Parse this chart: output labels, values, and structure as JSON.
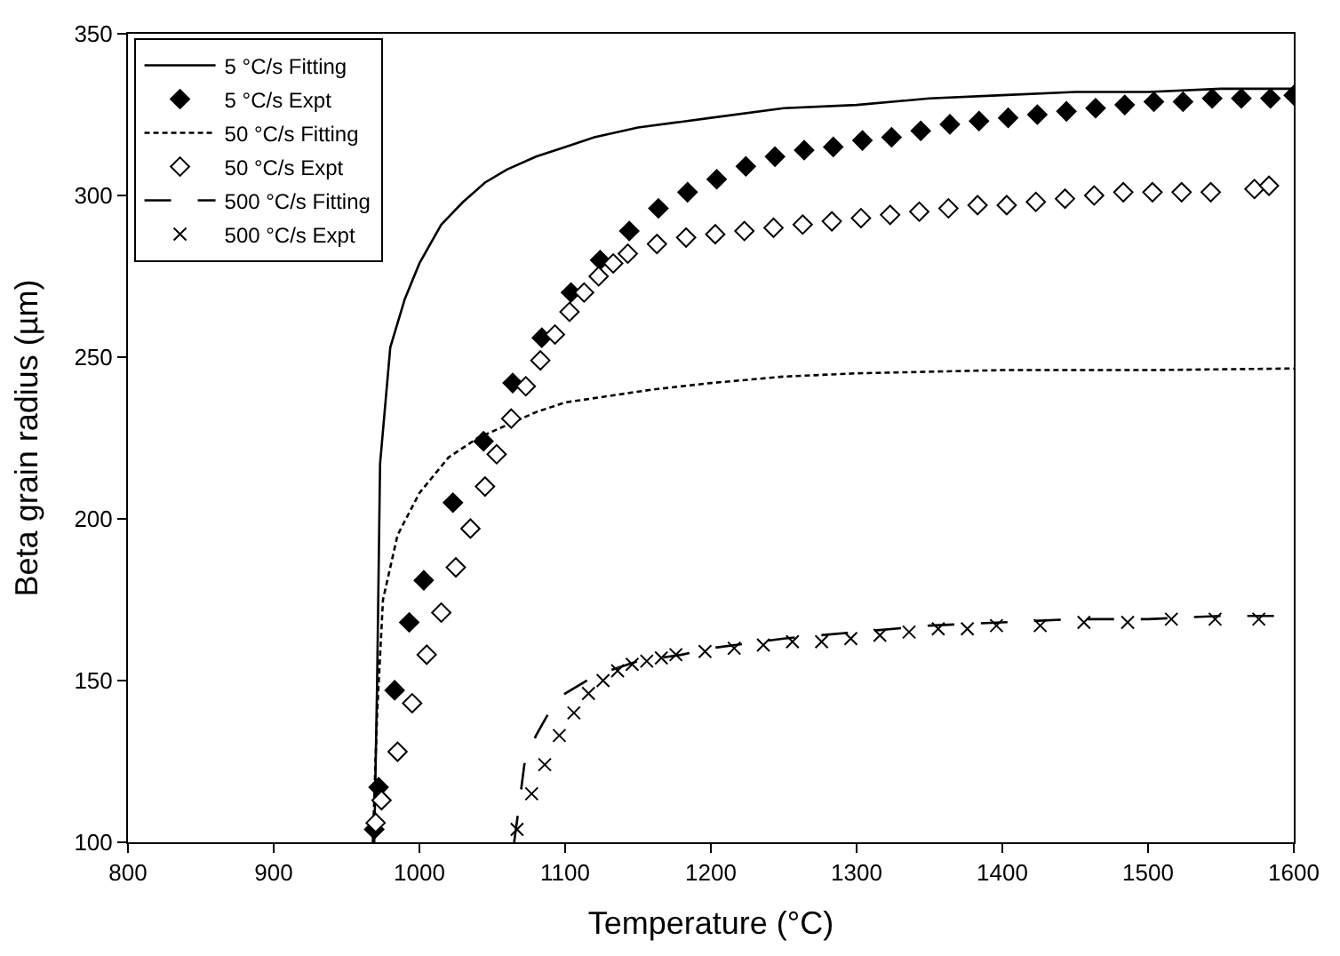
{
  "chart_data": {
    "type": "line",
    "xlabel": "Temperature (°C)",
    "ylabel": "Beta grain radius (µm)",
    "xlim": [
      800,
      1600
    ],
    "ylim": [
      100,
      350
    ],
    "xticks": [
      800,
      900,
      1000,
      1100,
      1200,
      1300,
      1400,
      1500,
      1600
    ],
    "yticks": [
      100,
      150,
      200,
      250,
      300,
      350
    ],
    "legend": "top left",
    "series": [
      {
        "name": "5 °C/s Fitting",
        "color": "#000000",
        "line_style": "solid",
        "marker": "none",
        "x": [
          969,
          971,
          973,
          980,
          990,
          1000,
          1015,
          1030,
          1045,
          1060,
          1080,
          1100,
          1120,
          1150,
          1200,
          1250,
          1300,
          1350,
          1400,
          1450,
          1500,
          1550,
          1600
        ],
        "values": [
          100,
          150,
          217,
          253,
          268,
          279,
          291,
          298,
          304,
          308,
          312,
          315,
          318,
          321,
          324,
          327,
          328,
          330,
          331,
          332,
          332,
          333,
          333
        ]
      },
      {
        "name": "5 °C/s Expt",
        "type": "scatter",
        "color": "#000000",
        "marker": "diamond",
        "x": [
          969,
          972,
          983,
          993,
          1003,
          1023,
          1044,
          1064,
          1084,
          1104,
          1124,
          1144,
          1164,
          1184,
          1204,
          1224,
          1244,
          1264,
          1284,
          1304,
          1324,
          1344,
          1364,
          1384,
          1404,
          1424,
          1444,
          1464,
          1484,
          1504,
          1524,
          1544,
          1564,
          1584,
          1600
        ],
        "values": [
          104,
          117,
          147,
          168,
          181,
          205,
          224,
          242,
          256,
          270,
          280,
          289,
          296,
          301,
          305,
          309,
          312,
          314,
          315,
          317,
          318,
          320,
          322,
          323,
          324,
          325,
          326,
          327,
          328,
          329,
          329,
          330,
          330,
          330,
          331
        ]
      },
      {
        "name": "50 °C/s Fitting",
        "color": "#000000",
        "line_style": "dotted",
        "marker": "none",
        "x": [
          968,
          971,
          975,
          985,
          1000,
          1020,
          1040,
          1060,
          1080,
          1100,
          1130,
          1160,
          1200,
          1250,
          1300,
          1400,
          1500,
          1600
        ],
        "values": [
          100,
          140,
          175,
          195,
          208,
          219,
          225,
          229,
          233,
          236,
          238,
          240,
          242,
          244,
          245,
          246,
          246,
          246.5
        ]
      },
      {
        "name": "50 °C/s Expt",
        "type": "scatter",
        "color": "#ffffff",
        "marker": "diamond",
        "x": [
          970,
          974,
          985,
          995,
          1005,
          1015,
          1025,
          1035,
          1045,
          1053,
          1063,
          1073,
          1083,
          1093,
          1103,
          1113,
          1123,
          1133,
          1143,
          1163,
          1183,
          1203,
          1223,
          1243,
          1263,
          1283,
          1303,
          1323,
          1343,
          1363,
          1383,
          1403,
          1423,
          1443,
          1463,
          1483,
          1503,
          1523,
          1543,
          1573,
          1583
        ],
        "values": [
          106,
          113,
          128,
          143,
          158,
          171,
          185,
          197,
          210,
          220,
          231,
          241,
          249,
          257,
          264,
          270,
          275,
          279,
          282,
          285,
          287,
          288,
          289,
          290,
          291,
          292,
          293,
          294,
          295,
          296,
          297,
          297,
          298,
          299,
          300,
          301,
          301,
          301,
          301,
          302,
          303
        ]
      },
      {
        "name": "500 °C/s Fitting",
        "color": "#000000",
        "line_style": "dashed",
        "marker": "none",
        "x": [
          1065,
          1068,
          1072,
          1080,
          1090,
          1100,
          1115,
          1130,
          1150,
          1180,
          1200,
          1250,
          1300,
          1350,
          1400,
          1450,
          1500,
          1550,
          1600
        ],
        "values": [
          100,
          110,
          124,
          133,
          141,
          146,
          150,
          153,
          156,
          158,
          160,
          163,
          165,
          167,
          168,
          169,
          169,
          170,
          170
        ]
      },
      {
        "name": "500 °C/s Expt",
        "type": "scatter",
        "color": "#000000",
        "marker": "cross",
        "x": [
          1067,
          1077,
          1086,
          1096,
          1106,
          1116,
          1126,
          1136,
          1146,
          1156,
          1166,
          1176,
          1196,
          1216,
          1236,
          1256,
          1276,
          1296,
          1316,
          1336,
          1356,
          1376,
          1396,
          1426,
          1456,
          1486,
          1516,
          1546,
          1576
        ],
        "values": [
          104,
          115,
          124,
          133,
          140,
          146,
          150,
          153,
          155,
          156,
          157,
          158,
          159,
          160,
          161,
          162,
          162,
          163,
          164,
          165,
          166,
          166,
          167,
          167,
          168,
          168,
          169,
          169,
          169
        ]
      }
    ]
  }
}
